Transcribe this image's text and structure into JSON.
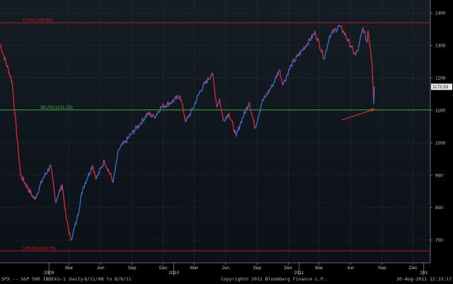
{
  "chart_data": {
    "type": "line",
    "title": "",
    "xlabel": "",
    "ylabel": "",
    "ylim": [
      630,
      1440
    ],
    "y_ticks": [
      700,
      800,
      900,
      1000,
      1100,
      1200,
      1300,
      1400
    ],
    "x_tick_labels": [
      "Mar",
      "Jun",
      "Sep",
      "Dec",
      "Mar",
      "Jun",
      "Sep",
      "Dec",
      "Mar",
      "Jun",
      "Sep",
      "Dec"
    ],
    "x_year_labels": [
      "2009",
      "2010",
      "2011",
      "201"
    ],
    "last_value_label": "1172.53",
    "last_value": 1172.53,
    "grid": true,
    "levels": [
      {
        "label": "0.0%(1369.93)",
        "value": 1369.93,
        "color": "#c81e1e"
      },
      {
        "label": "38.2%(1101.33)",
        "value": 1101.33,
        "color": "#39b539"
      },
      {
        "label": "100.0%(666.79)",
        "value": 666.79,
        "color": "#c81e1e"
      }
    ],
    "series": [
      {
        "color": "#3a6fd0",
        "down_color": "#d8293b",
        "x": [
          "2008-08-11",
          "2008-09-15",
          "2008-10-10",
          "2008-11-20",
          "2008-12-15",
          "2009-01-06",
          "2009-01-20",
          "2009-02-09",
          "2009-02-20",
          "2009-03-06",
          "2009-03-23",
          "2009-04-10",
          "2009-05-08",
          "2009-05-20",
          "2009-06-12",
          "2009-07-08",
          "2009-07-24",
          "2009-08-14",
          "2009-08-28",
          "2009-09-25",
          "2009-10-16",
          "2009-11-05",
          "2009-11-25",
          "2009-12-24",
          "2010-01-19",
          "2010-02-05",
          "2010-02-25",
          "2010-03-19",
          "2010-04-23",
          "2010-05-07",
          "2010-05-14",
          "2010-05-25",
          "2010-06-11",
          "2010-07-02",
          "2010-07-16",
          "2010-08-09",
          "2010-08-26",
          "2010-09-15",
          "2010-10-15",
          "2010-11-05",
          "2010-11-16",
          "2010-12-10",
          "2011-01-14",
          "2011-02-18",
          "2011-03-16",
          "2011-04-01",
          "2011-04-29",
          "2011-05-13",
          "2011-06-15",
          "2011-06-24",
          "2011-07-07",
          "2011-07-19",
          "2011-07-22",
          "2011-07-29",
          "2011-08-03",
          "2011-08-08",
          "2011-08-09"
        ],
        "values": [
          1305,
          1190,
          900,
          825,
          890,
          930,
          820,
          870,
          770,
          700,
          760,
          860,
          930,
          890,
          945,
          880,
          980,
          1005,
          1025,
          1060,
          1090,
          1080,
          1110,
          1125,
          1145,
          1065,
          1105,
          1160,
          1215,
          1110,
          1135,
          1070,
          1090,
          1020,
          1065,
          1125,
          1045,
          1125,
          1175,
          1225,
          1180,
          1240,
          1290,
          1340,
          1260,
          1330,
          1360,
          1340,
          1270,
          1290,
          1355,
          1310,
          1345,
          1290,
          1240,
          1120,
          1172.53
        ]
      }
    ],
    "annotation_arrow": {
      "from_x": "2011-05-05",
      "from_y": 1070,
      "to_x": "2011-08-09",
      "to_y": 1103,
      "color": "#e2372f"
    }
  },
  "footer": {
    "left": "SPX -- S&P 500 INDEX",
    "mid1": "G-1",
    "mid2": "Daily",
    "range": "8/11/08 to 8/9/11",
    "copyright": "Copyright© 2011 Bloomberg Finance L.P.",
    "timestamp": "10-Aug-2011 12:33:17"
  }
}
